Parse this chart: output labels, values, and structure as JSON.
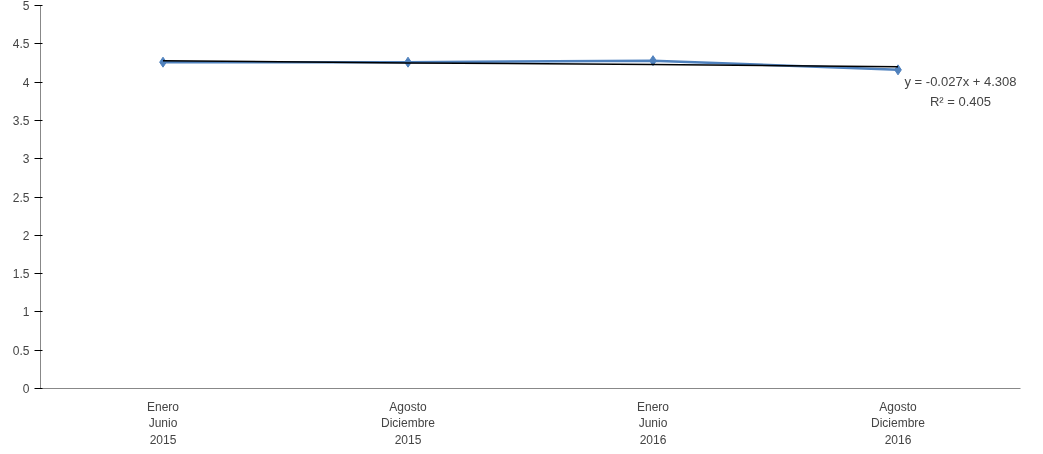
{
  "chart_data": {
    "type": "line",
    "categories": [
      "Enero Junio 2015",
      "Agosto Diciembre 2015",
      "Enero Junio 2016",
      "Agosto Diciembre 2016"
    ],
    "series": [
      {
        "color": "#4f81bd",
        "values": [
          4.26,
          4.26,
          4.28,
          4.16
        ],
        "marker": "diamond"
      },
      {
        "type": "line",
        "color": "#000000",
        "values": [
          4.28,
          4.25,
          4.23,
          4.2
        ],
        "marker": "none"
      }
    ],
    "ylim": [
      0,
      5
    ],
    "yticks": [
      0,
      0.5,
      1,
      1.5,
      2,
      2.5,
      3,
      3.5,
      4,
      4.5,
      5
    ],
    "grid": false,
    "annotations": [
      "y = -0.027x + 4.308",
      "R² = 0.405"
    ]
  }
}
